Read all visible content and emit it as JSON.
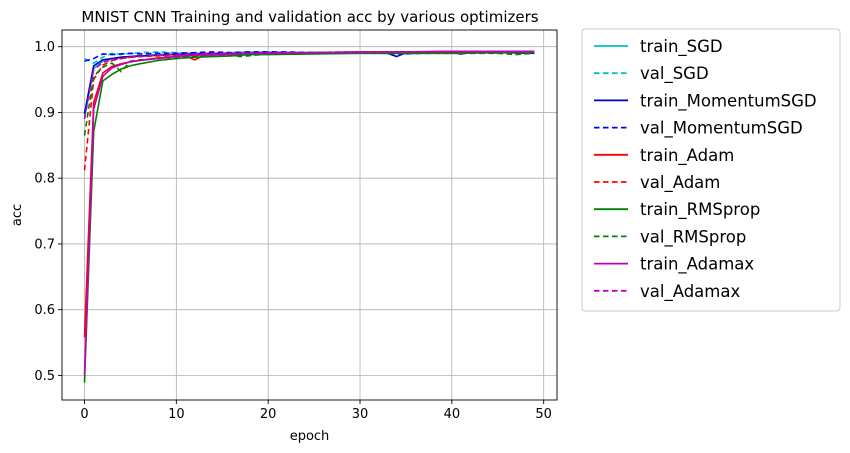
{
  "chart_data": {
    "type": "line",
    "title": "MNIST CNN Training and validation acc by various optimizers",
    "xlabel": "epoch",
    "ylabel": "acc",
    "xlim": [
      -2.45,
      51.45
    ],
    "ylim": [
      0.4626,
      1.0254
    ],
    "xticks": [
      0,
      10,
      20,
      30,
      40,
      50
    ],
    "yticks": [
      0.5,
      0.6,
      0.7,
      0.8,
      0.9,
      1.0
    ],
    "xtick_labels": [
      "0",
      "10",
      "20",
      "30",
      "40",
      "50"
    ],
    "ytick_labels": [
      "0.5",
      "0.6",
      "0.7",
      "0.8",
      "0.9",
      "1.0"
    ],
    "grid": true,
    "legend_position": "outside-right-top",
    "series": [
      {
        "name": "train_SGD",
        "color": "#00bfbf",
        "dash": "solid",
        "x": [
          0,
          1,
          2,
          3,
          4,
          5,
          6,
          7,
          8,
          10,
          12,
          15,
          18,
          20,
          25,
          30,
          35,
          40,
          45,
          49
        ],
        "y": [
          0.892,
          0.967,
          0.978,
          0.982,
          0.984,
          0.985,
          0.986,
          0.987,
          0.988,
          0.989,
          0.99,
          0.99,
          0.991,
          0.991,
          0.991,
          0.992,
          0.992,
          0.992,
          0.992,
          0.993
        ]
      },
      {
        "name": "val_SGD",
        "color": "#00bfbf",
        "dash": "dashed",
        "x": [
          0,
          1,
          2,
          3,
          4,
          5,
          6,
          8,
          10,
          12,
          15,
          17,
          20,
          22,
          25,
          28,
          30,
          33,
          35,
          38,
          40,
          43,
          45,
          47,
          49
        ],
        "y": [
          0.982,
          0.975,
          0.984,
          0.99,
          0.988,
          0.99,
          0.991,
          0.992,
          0.991,
          0.99,
          0.99,
          0.992,
          0.992,
          0.991,
          0.991,
          0.99,
          0.991,
          0.991,
          0.989,
          0.991,
          0.992,
          0.991,
          0.99,
          0.992,
          0.991
        ]
      },
      {
        "name": "train_MomentumSGD",
        "color": "#0000bf",
        "dash": "solid",
        "x": [
          0,
          1,
          2,
          3,
          4,
          5,
          6,
          8,
          10,
          12,
          15,
          18,
          20,
          25,
          30,
          33,
          34,
          35,
          38,
          40,
          41,
          42,
          45,
          49
        ],
        "y": [
          0.898,
          0.971,
          0.98,
          0.982,
          0.984,
          0.985,
          0.986,
          0.987,
          0.988,
          0.989,
          0.99,
          0.99,
          0.991,
          0.991,
          0.991,
          0.99,
          0.985,
          0.991,
          0.991,
          0.991,
          0.989,
          0.991,
          0.991,
          0.99
        ]
      },
      {
        "name": "val_MomentumSGD",
        "color": "#0000ff",
        "dash": "dashed",
        "x": [
          0,
          1,
          2,
          3,
          4,
          5,
          6,
          8,
          10,
          12,
          14,
          16,
          18,
          20,
          22,
          25,
          28,
          30,
          33,
          35,
          38,
          40,
          42,
          45,
          49
        ],
        "y": [
          0.978,
          0.982,
          0.989,
          0.988,
          0.989,
          0.99,
          0.989,
          0.99,
          0.99,
          0.991,
          0.992,
          0.991,
          0.992,
          0.992,
          0.992,
          0.991,
          0.992,
          0.991,
          0.99,
          0.989,
          0.991,
          0.992,
          0.99,
          0.991,
          0.99
        ]
      },
      {
        "name": "train_Adam",
        "color": "#ff0000",
        "dash": "solid",
        "x": [
          0,
          1,
          2,
          3,
          4,
          5,
          6,
          8,
          10,
          11,
          12,
          13,
          15,
          18,
          20,
          25,
          30,
          35,
          40,
          45,
          49
        ],
        "y": [
          0.558,
          0.915,
          0.96,
          0.97,
          0.974,
          0.977,
          0.979,
          0.983,
          0.985,
          0.986,
          0.98,
          0.987,
          0.988,
          0.989,
          0.99,
          0.991,
          0.992,
          0.992,
          0.993,
          0.993,
          0.993
        ]
      },
      {
        "name": "val_Adam",
        "color": "#ff0000",
        "dash": "dashed",
        "x": [
          0,
          1,
          2,
          3,
          4,
          5,
          6,
          8,
          10,
          12,
          15,
          18,
          20,
          25,
          30,
          35,
          40,
          45,
          49
        ],
        "y": [
          0.812,
          0.95,
          0.972,
          0.979,
          0.982,
          0.984,
          0.985,
          0.986,
          0.987,
          0.988,
          0.989,
          0.99,
          0.99,
          0.991,
          0.991,
          0.992,
          0.992,
          0.992,
          0.992
        ]
      },
      {
        "name": "train_RMSprop",
        "color": "#008000",
        "dash": "solid",
        "x": [
          0,
          1,
          2,
          3,
          4,
          5,
          6,
          8,
          10,
          12,
          14,
          16,
          18,
          20,
          25,
          30,
          35,
          40,
          45,
          49
        ],
        "y": [
          0.489,
          0.871,
          0.948,
          0.958,
          0.966,
          0.971,
          0.974,
          0.979,
          0.982,
          0.984,
          0.985,
          0.986,
          0.988,
          0.988,
          0.989,
          0.99,
          0.99,
          0.99,
          0.991,
          0.991
        ]
      },
      {
        "name": "val_RMSprop",
        "color": "#008000",
        "dash": "dashed",
        "x": [
          0,
          1,
          2,
          3,
          4,
          5,
          6,
          8,
          10,
          12,
          15,
          17,
          20,
          25,
          30,
          35,
          40,
          45,
          47,
          49
        ],
        "y": [
          0.865,
          0.955,
          0.969,
          0.975,
          0.962,
          0.978,
          0.98,
          0.982,
          0.984,
          0.986,
          0.988,
          0.985,
          0.989,
          0.99,
          0.99,
          0.99,
          0.99,
          0.99,
          0.988,
          0.99
        ]
      },
      {
        "name": "train_Adamax",
        "color": "#bf00bf",
        "dash": "solid",
        "x": [
          0,
          1,
          2,
          3,
          4,
          5,
          6,
          8,
          10,
          12,
          15,
          18,
          20,
          25,
          30,
          35,
          40,
          45,
          49
        ],
        "y": [
          0.5,
          0.905,
          0.955,
          0.968,
          0.973,
          0.977,
          0.979,
          0.982,
          0.985,
          0.987,
          0.988,
          0.99,
          0.99,
          0.991,
          0.992,
          0.992,
          0.993,
          0.993,
          0.993
        ]
      },
      {
        "name": "val_Adamax",
        "color": "#bf00bf",
        "dash": "dashed",
        "x": [
          0,
          1,
          2,
          3,
          4,
          5,
          6,
          8,
          10,
          12,
          15,
          18,
          20,
          25,
          30,
          35,
          40,
          45,
          49
        ],
        "y": [
          0.89,
          0.965,
          0.976,
          0.98,
          0.982,
          0.984,
          0.985,
          0.987,
          0.988,
          0.989,
          0.99,
          0.99,
          0.991,
          0.991,
          0.991,
          0.992,
          0.992,
          0.992,
          0.992
        ]
      }
    ]
  }
}
